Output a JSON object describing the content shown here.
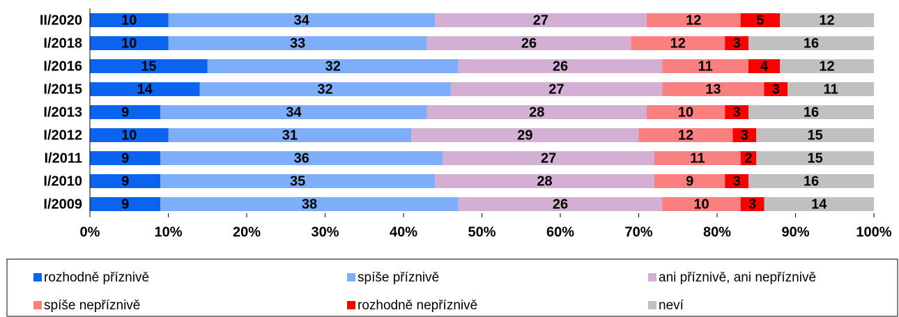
{
  "chart_data": {
    "type": "stacked-bar-horizontal",
    "categories": [
      "II/2020",
      "I/2018",
      "I/2016",
      "I/2015",
      "I/2013",
      "I/2012",
      "I/2011",
      "I/2010",
      "I/2009"
    ],
    "series": [
      {
        "name": "rozhodně příznivě",
        "color": "#0a64f0",
        "values": [
          10,
          10,
          15,
          14,
          9,
          10,
          9,
          9,
          9
        ]
      },
      {
        "name": "spíše příznivě",
        "color": "#7eaefa",
        "values": [
          34,
          33,
          32,
          32,
          34,
          31,
          36,
          35,
          38
        ]
      },
      {
        "name": "ani příznivě, ani nepříznivě",
        "color": "#d4afd4",
        "values": [
          27,
          26,
          26,
          27,
          28,
          29,
          27,
          28,
          26
        ]
      },
      {
        "name": "spíše nepříznivě",
        "color": "#fa7f7f",
        "values": [
          12,
          12,
          11,
          13,
          10,
          12,
          11,
          9,
          10
        ]
      },
      {
        "name": "rozhodně nepříznivě",
        "color": "#fa0000",
        "values": [
          5,
          3,
          4,
          3,
          3,
          3,
          2,
          3,
          3
        ]
      },
      {
        "name": "neví",
        "color": "#c0c0c0",
        "values": [
          12,
          16,
          12,
          11,
          16,
          15,
          15,
          16,
          14
        ]
      }
    ],
    "xlim": [
      0,
      100
    ],
    "xticks": [
      {
        "value": 0,
        "label": "0%"
      },
      {
        "value": 10,
        "label": "10%"
      },
      {
        "value": 20,
        "label": "20%"
      },
      {
        "value": 30,
        "label": "30%"
      },
      {
        "value": 40,
        "label": "40%"
      },
      {
        "value": 50,
        "label": "50%"
      },
      {
        "value": 60,
        "label": "60%"
      },
      {
        "value": 70,
        "label": "70%"
      },
      {
        "value": 80,
        "label": "80%"
      },
      {
        "value": 90,
        "label": "90%"
      },
      {
        "value": 100,
        "label": "100%"
      }
    ],
    "legend": "bottom"
  }
}
